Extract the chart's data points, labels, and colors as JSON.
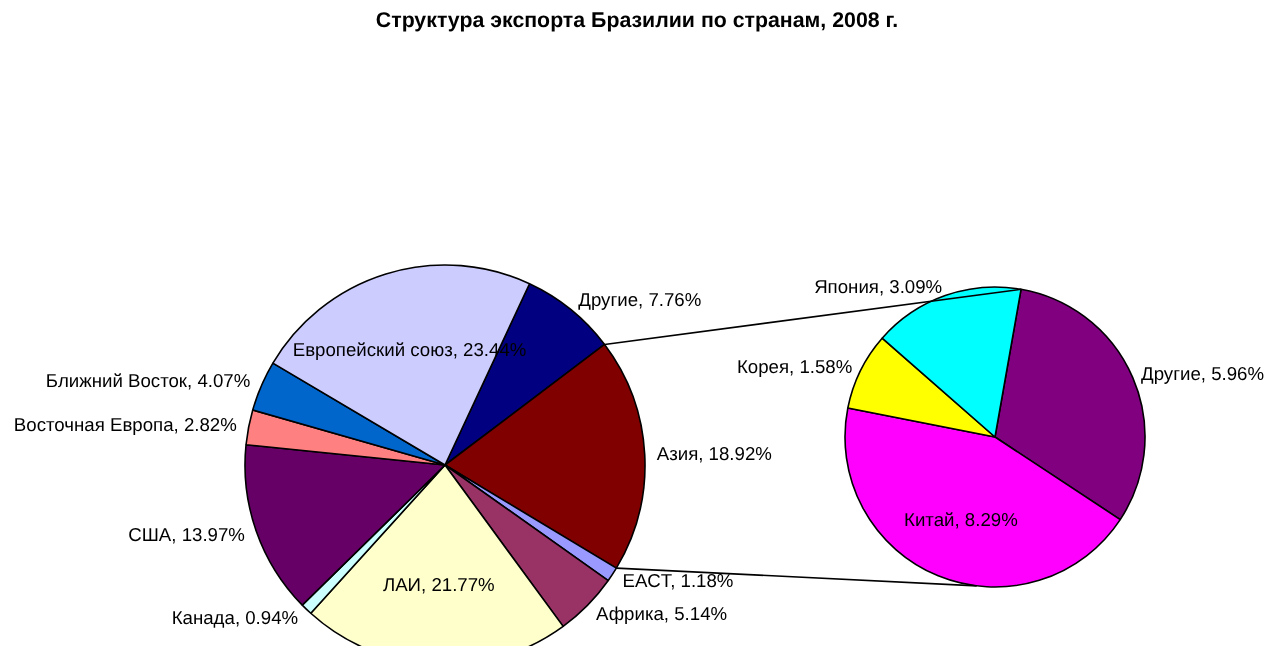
{
  "chart_data": [
    {
      "type": "pie",
      "title": "Структура экспорта Бразилии по странам, 2008 г.",
      "categories": [
        "Другие",
        "Азия",
        "EACT",
        "Африка",
        "ЛАИ",
        "Канада",
        "США",
        "Восточная Европа",
        "Ближний Восток",
        "Европейский союз"
      ],
      "values": [
        7.76,
        18.92,
        1.18,
        5.14,
        21.77,
        0.94,
        13.97,
        2.82,
        4.07,
        23.44
      ],
      "value_labels": [
        "7.76%",
        "18.92%",
        "1.18%",
        "5.14%",
        "21.77%",
        "0.94%",
        "13.97%",
        "2.82%",
        "4.07%",
        "23.44%"
      ],
      "colors": [
        "#000080",
        "#800000",
        "#9999ff",
        "#993366",
        "#ffffcc",
        "#ccffff",
        "#660066",
        "#ff8080",
        "#0066cc",
        "#ccccff"
      ]
    },
    {
      "type": "pie",
      "categories": [
        "Другие",
        "Китай",
        "Корея",
        "Япония"
      ],
      "values": [
        5.96,
        8.29,
        1.58,
        3.09
      ],
      "value_labels": [
        "5.96%",
        "8.29%",
        "1.58%",
        "3.09%"
      ],
      "colors": [
        "#800080",
        "#ff00ff",
        "#ffff00",
        "#00ffff"
      ]
    }
  ]
}
